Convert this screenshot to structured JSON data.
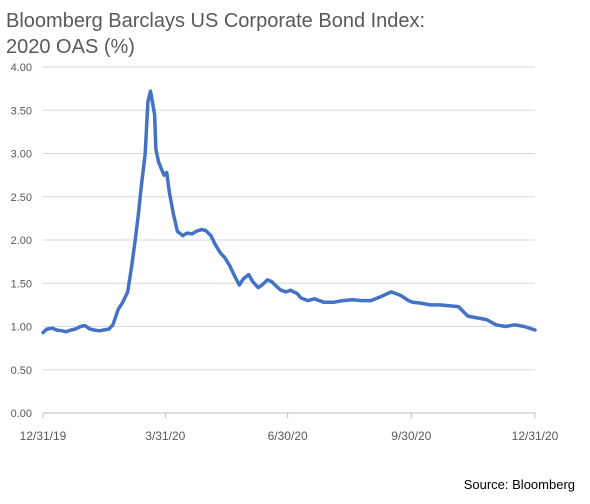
{
  "title_line1": "Bloomberg Barclays US Corporate Bond Index:",
  "title_line2": "2020 OAS (%)",
  "source": "Source: Bloomberg",
  "colors": {
    "line": "#4472C4",
    "grid": "#D9D9D9",
    "axis": "#BFBFBF",
    "tick_text": "#595959"
  },
  "chart_data": {
    "type": "line",
    "title": "Bloomberg Barclays US Corporate Bond Index: 2020 OAS (%)",
    "xlabel": "",
    "ylabel": "",
    "ylim": [
      0,
      4
    ],
    "y_ticks": [
      "0.00",
      "0.50",
      "1.00",
      "1.50",
      "2.00",
      "2.50",
      "3.00",
      "3.50",
      "4.00"
    ],
    "x_ticks": [
      "12/31/19",
      "3/31/20",
      "6/30/20",
      "9/30/20",
      "12/31/20"
    ],
    "x_range": [
      "2019-12-31",
      "2020-12-31"
    ],
    "grid": true,
    "legend": "none",
    "series": [
      {
        "name": "",
        "x": [
          "2019-12-31",
          "2020-01-03",
          "2020-01-07",
          "2020-01-10",
          "2020-01-14",
          "2020-01-17",
          "2020-01-21",
          "2020-01-24",
          "2020-01-28",
          "2020-01-31",
          "2020-02-04",
          "2020-02-07",
          "2020-02-11",
          "2020-02-14",
          "2020-02-18",
          "2020-02-21",
          "2020-02-25",
          "2020-02-28",
          "2020-03-03",
          "2020-03-06",
          "2020-03-09",
          "2020-03-11",
          "2020-03-13",
          "2020-03-16",
          "2020-03-18",
          "2020-03-20",
          "2020-03-23",
          "2020-03-24",
          "2020-03-26",
          "2020-03-30",
          "2020-04-01",
          "2020-04-03",
          "2020-04-06",
          "2020-04-09",
          "2020-04-13",
          "2020-04-16",
          "2020-04-20",
          "2020-04-23",
          "2020-04-27",
          "2020-04-30",
          "2020-05-04",
          "2020-05-07",
          "2020-05-11",
          "2020-05-14",
          "2020-05-18",
          "2020-05-21",
          "2020-05-25",
          "2020-05-28",
          "2020-06-01",
          "2020-06-04",
          "2020-06-08",
          "2020-06-11",
          "2020-06-15",
          "2020-06-18",
          "2020-06-22",
          "2020-06-25",
          "2020-06-29",
          "2020-07-02",
          "2020-07-07",
          "2020-07-10",
          "2020-07-15",
          "2020-07-20",
          "2020-07-27",
          "2020-08-03",
          "2020-08-10",
          "2020-08-17",
          "2020-08-24",
          "2020-08-31",
          "2020-09-08",
          "2020-09-15",
          "2020-09-22",
          "2020-09-28",
          "2020-10-01",
          "2020-10-07",
          "2020-10-14",
          "2020-10-21",
          "2020-10-28",
          "2020-11-04",
          "2020-11-11",
          "2020-11-18",
          "2020-11-25",
          "2020-12-02",
          "2020-12-09",
          "2020-12-16",
          "2020-12-23",
          "2020-12-31"
        ],
        "values": [
          0.93,
          0.97,
          0.98,
          0.96,
          0.95,
          0.94,
          0.96,
          0.97,
          1.0,
          1.01,
          0.97,
          0.96,
          0.95,
          0.96,
          0.97,
          1.02,
          1.2,
          1.27,
          1.4,
          1.7,
          2.05,
          2.3,
          2.6,
          3.0,
          3.6,
          3.72,
          3.45,
          3.05,
          2.9,
          2.75,
          2.78,
          2.55,
          2.3,
          2.1,
          2.05,
          2.08,
          2.07,
          2.1,
          2.12,
          2.11,
          2.05,
          1.95,
          1.85,
          1.8,
          1.7,
          1.6,
          1.48,
          1.55,
          1.6,
          1.52,
          1.45,
          1.48,
          1.54,
          1.52,
          1.46,
          1.42,
          1.4,
          1.42,
          1.38,
          1.33,
          1.3,
          1.32,
          1.28,
          1.28,
          1.3,
          1.31,
          1.3,
          1.3,
          1.35,
          1.4,
          1.36,
          1.3,
          1.28,
          1.27,
          1.25,
          1.25,
          1.24,
          1.23,
          1.12,
          1.1,
          1.08,
          1.02,
          1.0,
          1.02,
          1.0,
          0.96
        ]
      }
    ]
  }
}
